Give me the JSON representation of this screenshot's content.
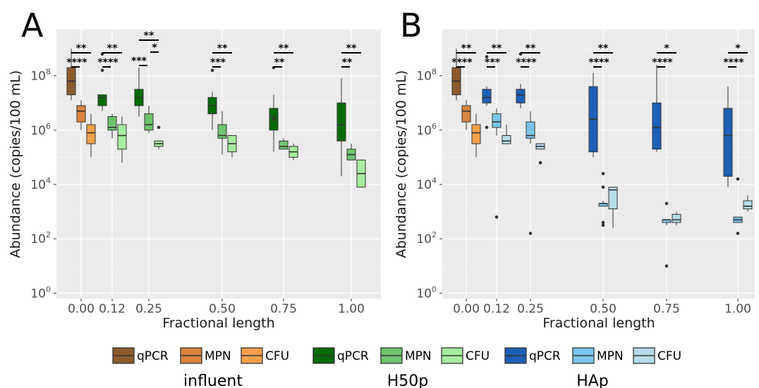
{
  "chart_data": [
    {
      "panel": "A",
      "type": "box",
      "xlabel": "Fractional length",
      "ylabel": "Abundance (copies/100 mL)",
      "x_ticks": [
        "0.00",
        "0.12",
        "0.25",
        "0.50",
        "0.75",
        "1.00"
      ],
      "y_scale": "log10",
      "y_ticks": [
        "0",
        "2",
        "4",
        "6",
        "8"
      ],
      "ylim_log10": [
        -0.2,
        9.7
      ],
      "boxes": [
        {
          "x": 0.0,
          "series": "influent-qPCR",
          "min": 7.1,
          "q1": 7.3,
          "median": 7.8,
          "q3": 8.3,
          "max": 9.0,
          "outliers": []
        },
        {
          "x": 0.0,
          "series": "influent-MPN",
          "min": 6.0,
          "q1": 6.3,
          "median": 6.7,
          "q3": 6.9,
          "max": 7.1,
          "outliers": []
        },
        {
          "x": 0.0,
          "series": "influent-CFU",
          "min": 5.0,
          "q1": 5.5,
          "median": 5.9,
          "q3": 6.2,
          "max": 6.6,
          "outliers": []
        },
        {
          "x": 0.12,
          "series": "H50p-qPCR",
          "min": 6.7,
          "q1": 6.9,
          "median": 7.2,
          "q3": 7.3,
          "max": 7.3,
          "outliers": [
            8.8,
            8.2
          ]
        },
        {
          "x": 0.12,
          "series": "H50p-MPN",
          "min": 5.7,
          "q1": 6.0,
          "median": 6.1,
          "q3": 6.5,
          "max": 6.6,
          "outliers": []
        },
        {
          "x": 0.12,
          "series": "H50p-CFU",
          "min": 4.8,
          "q1": 5.3,
          "median": 5.8,
          "q3": 6.2,
          "max": 6.5,
          "outliers": []
        },
        {
          "x": 0.25,
          "series": "H50p-qPCR",
          "min": 6.5,
          "q1": 6.9,
          "median": 7.2,
          "q3": 7.5,
          "max": 8.3,
          "outliers": []
        },
        {
          "x": 0.25,
          "series": "H50p-MPN",
          "min": 5.9,
          "q1": 6.0,
          "median": 6.2,
          "q3": 6.6,
          "max": 6.9,
          "outliers": []
        },
        {
          "x": 0.25,
          "series": "H50p-CFU",
          "min": 5.3,
          "q1": 5.4,
          "median": 5.5,
          "q3": 5.6,
          "max": 5.6,
          "outliers": [
            6.1
          ]
        },
        {
          "x": 0.5,
          "series": "H50p-qPCR",
          "min": 6.0,
          "q1": 6.6,
          "median": 6.9,
          "q3": 7.2,
          "max": 7.4,
          "outliers": [
            8.2
          ]
        },
        {
          "x": 0.5,
          "series": "H50p-MPN",
          "min": 5.1,
          "q1": 5.7,
          "median": 5.8,
          "q3": 6.2,
          "max": 6.7,
          "outliers": []
        },
        {
          "x": 0.5,
          "series": "H50p-CFU",
          "min": 5.0,
          "q1": 5.2,
          "median": 5.5,
          "q3": 5.8,
          "max": 5.8,
          "outliers": []
        },
        {
          "x": 0.75,
          "series": "H50p-qPCR",
          "min": 5.2,
          "q1": 6.0,
          "median": 6.5,
          "q3": 6.8,
          "max": 7.3,
          "outliers": [
            8.3,
            6.4
          ]
        },
        {
          "x": 0.75,
          "series": "H50p-MPN",
          "min": 5.3,
          "q1": 5.3,
          "median": 5.4,
          "q3": 5.6,
          "max": 5.7,
          "outliers": []
        },
        {
          "x": 0.75,
          "series": "H50p-CFU",
          "min": 4.9,
          "q1": 5.0,
          "median": 5.2,
          "q3": 5.4,
          "max": 5.5,
          "outliers": []
        },
        {
          "x": 1.0,
          "series": "H50p-qPCR",
          "min": 4.3,
          "q1": 5.6,
          "median": 6.2,
          "q3": 7.0,
          "max": 7.9,
          "outliers": []
        },
        {
          "x": 1.0,
          "series": "H50p-MPN",
          "min": 4.9,
          "q1": 4.9,
          "median": 5.1,
          "q3": 5.3,
          "max": 5.5,
          "outliers": []
        },
        {
          "x": 1.0,
          "series": "H50p-CFU",
          "min": 3.9,
          "q1": 3.9,
          "median": 4.4,
          "q3": 4.9,
          "max": 4.9,
          "outliers": []
        }
      ],
      "significance": [
        {
          "x": 0.0,
          "rows": [
            "**",
            "****"
          ]
        },
        {
          "x": 0.12,
          "rows": [
            "**",
            "****"
          ]
        },
        {
          "x": 0.25,
          "rows": [
            "**",
            "*",
            "***"
          ]
        },
        {
          "x": 0.5,
          "rows": [
            "**",
            "***"
          ]
        },
        {
          "x": 0.75,
          "rows": [
            "**",
            "**"
          ]
        },
        {
          "x": 1.0,
          "rows": [
            "**",
            "**"
          ]
        }
      ]
    },
    {
      "panel": "B",
      "type": "box",
      "xlabel": "Fractional length",
      "ylabel": "Abundance (copies/100 mL)",
      "x_ticks": [
        "0.00",
        "0.12",
        "0.25",
        "0.50",
        "0.75",
        "1.00"
      ],
      "y_scale": "log10",
      "y_ticks": [
        "0",
        "2",
        "4",
        "6",
        "8"
      ],
      "ylim_log10": [
        -0.2,
        9.7
      ],
      "boxes": [
        {
          "x": 0.0,
          "series": "influent-qPCR",
          "min": 7.1,
          "q1": 7.3,
          "median": 7.8,
          "q3": 8.3,
          "max": 9.0,
          "outliers": []
        },
        {
          "x": 0.0,
          "series": "influent-MPN",
          "min": 6.0,
          "q1": 6.3,
          "median": 6.7,
          "q3": 6.9,
          "max": 7.1,
          "outliers": []
        },
        {
          "x": 0.0,
          "series": "influent-CFU",
          "min": 5.0,
          "q1": 5.5,
          "median": 5.9,
          "q3": 6.2,
          "max": 6.6,
          "outliers": []
        },
        {
          "x": 0.12,
          "series": "HAp-qPCR",
          "min": 6.9,
          "q1": 7.0,
          "median": 7.2,
          "q3": 7.5,
          "max": 7.6,
          "outliers": [
            8.7,
            6.1
          ]
        },
        {
          "x": 0.12,
          "series": "HAp-MPN",
          "min": 5.8,
          "q1": 6.1,
          "median": 6.3,
          "q3": 6.6,
          "max": 6.8,
          "outliers": [
            2.8
          ]
        },
        {
          "x": 0.12,
          "series": "HAp-CFU",
          "min": 5.5,
          "q1": 5.5,
          "median": 5.6,
          "q3": 5.8,
          "max": 6.2,
          "outliers": []
        },
        {
          "x": 0.25,
          "series": "HAp-qPCR",
          "min": 6.8,
          "q1": 7.0,
          "median": 7.3,
          "q3": 7.5,
          "max": 7.7,
          "outliers": [
            8.8
          ]
        },
        {
          "x": 0.25,
          "series": "HAp-MPN",
          "min": 5.5,
          "q1": 5.7,
          "median": 5.8,
          "q3": 6.3,
          "max": 6.7,
          "outliers": [
            2.2
          ]
        },
        {
          "x": 0.25,
          "series": "HAp-CFU",
          "min": 5.3,
          "q1": 5.3,
          "median": 5.4,
          "q3": 5.5,
          "max": 5.5,
          "outliers": [
            4.8
          ]
        },
        {
          "x": 0.5,
          "series": "HAp-qPCR",
          "min": 5.0,
          "q1": 5.2,
          "median": 6.4,
          "q3": 7.6,
          "max": 8.1,
          "outliers": []
        },
        {
          "x": 0.5,
          "series": "HAp-MPN",
          "min": 3.2,
          "q1": 3.2,
          "median": 3.3,
          "q3": 3.3,
          "max": 3.4,
          "outliers": [
            4.4,
            3.9,
            2.6,
            2.5
          ]
        },
        {
          "x": 0.5,
          "series": "HAp-CFU",
          "min": 2.4,
          "q1": 3.1,
          "median": 3.8,
          "q3": 3.9,
          "max": 3.9,
          "outliers": []
        },
        {
          "x": 0.75,
          "series": "HAp-qPCR",
          "min": 5.2,
          "q1": 5.3,
          "median": 6.1,
          "q3": 7.0,
          "max": 8.4,
          "outliers": []
        },
        {
          "x": 0.75,
          "series": "HAp-MPN",
          "min": 2.5,
          "q1": 2.6,
          "median": 2.7,
          "q3": 2.7,
          "max": 2.7,
          "outliers": [
            3.3,
            1.0
          ]
        },
        {
          "x": 0.75,
          "series": "HAp-CFU",
          "min": 2.5,
          "q1": 2.6,
          "median": 2.7,
          "q3": 2.9,
          "max": 3.0,
          "outliers": []
        },
        {
          "x": 1.0,
          "series": "HAp-qPCR",
          "min": 3.9,
          "q1": 4.3,
          "median": 5.8,
          "q3": 6.8,
          "max": 7.6,
          "outliers": []
        },
        {
          "x": 1.0,
          "series": "HAp-MPN",
          "min": 2.6,
          "q1": 2.6,
          "median": 2.7,
          "q3": 2.8,
          "max": 2.8,
          "outliers": [
            4.2,
            2.2
          ]
        },
        {
          "x": 1.0,
          "series": "HAp-CFU",
          "min": 3.0,
          "q1": 3.1,
          "median": 3.2,
          "q3": 3.4,
          "max": 3.6,
          "outliers": []
        }
      ],
      "significance": [
        {
          "x": 0.0,
          "rows": [
            "**",
            "****"
          ]
        },
        {
          "x": 0.12,
          "rows": [
            "**",
            "***"
          ]
        },
        {
          "x": 0.25,
          "rows": [
            "**",
            "****"
          ]
        },
        {
          "x": 0.5,
          "rows": [
            "**",
            "****"
          ]
        },
        {
          "x": 0.75,
          "rows": [
            "*",
            "****"
          ]
        },
        {
          "x": 1.0,
          "rows": [
            "*",
            "****"
          ]
        }
      ]
    }
  ],
  "series_colors": {
    "influent-qPCR": "#8c5a2b",
    "influent-MPN": "#d9843f",
    "influent-CFU": "#f5a04c",
    "H50p-qPCR": "#056b05",
    "H50p-MPN": "#6fc46f",
    "H50p-CFU": "#a7eea0",
    "HAp-qPCR": "#1c5fb5",
    "HAp-MPN": "#7cc6ec",
    "HAp-CFU": "#b6dcea"
  },
  "legend": {
    "groups": [
      {
        "title": "influent",
        "items": [
          {
            "label": "qPCR",
            "series": "influent-qPCR"
          },
          {
            "label": "MPN",
            "series": "influent-MPN"
          },
          {
            "label": "CFU",
            "series": "influent-CFU"
          }
        ]
      },
      {
        "title": "H50p",
        "items": [
          {
            "label": "qPCR",
            "series": "H50p-qPCR"
          },
          {
            "label": "MPN",
            "series": "H50p-MPN"
          },
          {
            "label": "CFU",
            "series": "H50p-CFU"
          }
        ]
      },
      {
        "title": "HAp",
        "items": [
          {
            "label": "qPCR",
            "series": "HAp-qPCR"
          },
          {
            "label": "MPN",
            "series": "HAp-MPN"
          },
          {
            "label": "CFU",
            "series": "HAp-CFU"
          }
        ]
      }
    ]
  },
  "style": {
    "panel_background": "#ebebeb",
    "grid_major": "#ffffff",
    "grid_minor": "#f4f4f4",
    "box_stroke": "#333333",
    "significance_color": "#000000"
  }
}
